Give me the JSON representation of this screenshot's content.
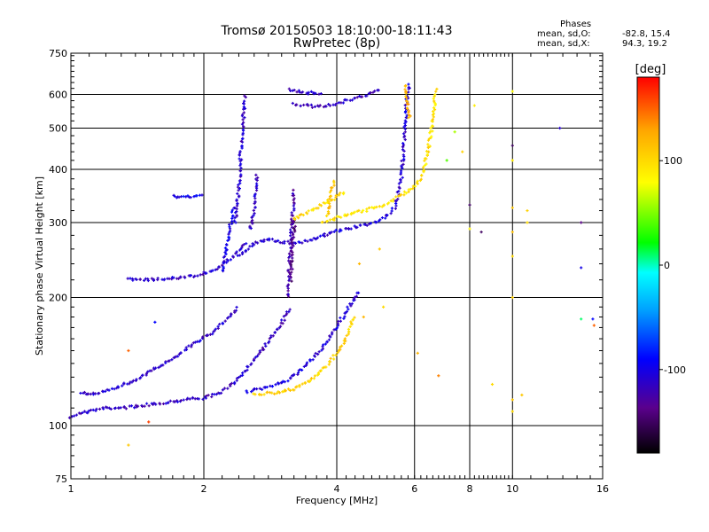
{
  "chart_data": {
    "type": "scatter",
    "title": "Tromsø 20150503 18:10:00-18:11:43",
    "subtitle": "RwPretec (8p)",
    "xlabel": "Frequency [MHz]",
    "ylabel": "Stationary phase Virtual Height [km]",
    "x_scale": "log",
    "y_scale": "log",
    "xlim": [
      1,
      16
    ],
    "ylim": [
      75,
      750
    ],
    "x_ticks": [
      1,
      2,
      4,
      6,
      8,
      10,
      16
    ],
    "x_tick_labels": [
      "1",
      "2",
      "4",
      "6",
      "8",
      "10",
      "16"
    ],
    "y_ticks": [
      75,
      100,
      200,
      300,
      400,
      500,
      600,
      750
    ],
    "y_tick_labels": [
      "75",
      "100",
      "200",
      "300",
      "400",
      "500",
      "600",
      "750"
    ],
    "grid": true,
    "colorbar": {
      "label": "[deg]",
      "range": [
        -180,
        180
      ],
      "ticks": [
        100,
        0,
        -100
      ],
      "tick_labels": [
        "100",
        "0",
        "-100"
      ],
      "colors": [
        "#000000",
        "#5a008c",
        "#0000ff",
        "#00a0ff",
        "#00ffff",
        "#00ff00",
        "#ffff00",
        "#ffa500",
        "#ff0000"
      ]
    },
    "stats": {
      "heading": "Phases",
      "o_label": "mean, sd,O:",
      "o_values": "-82.8, 15.4",
      "x_label": "mean, sd,X:",
      "x_values": "94.3, 19.2"
    },
    "traces": [
      {
        "name": "",
        "phase": -115,
        "points": [
          [
            1.0,
            105
          ],
          [
            1.05,
            107
          ],
          [
            1.1,
            108
          ],
          [
            1.15,
            109
          ],
          [
            1.2,
            110
          ],
          [
            1.25,
            110
          ],
          [
            1.3,
            110
          ],
          [
            1.4,
            111
          ],
          [
            1.5,
            112
          ],
          [
            1.6,
            113
          ],
          [
            1.7,
            114
          ],
          [
            1.8,
            115
          ],
          [
            1.9,
            116
          ],
          [
            2.0,
            116
          ],
          [
            2.1,
            118
          ],
          [
            2.2,
            120
          ],
          [
            2.3,
            124
          ],
          [
            2.4,
            130
          ],
          [
            2.5,
            136
          ],
          [
            2.6,
            143
          ],
          [
            2.7,
            150
          ],
          [
            2.8,
            158
          ],
          [
            2.9,
            166
          ],
          [
            3.0,
            175
          ],
          [
            3.1,
            184
          ],
          [
            3.15,
            190
          ]
        ]
      },
      {
        "name": "",
        "phase": -110,
        "points": [
          [
            1.05,
            120
          ],
          [
            1.1,
            118
          ],
          [
            1.2,
            121
          ],
          [
            1.3,
            124
          ],
          [
            1.4,
            128
          ],
          [
            1.5,
            133
          ],
          [
            1.6,
            139
          ],
          [
            1.7,
            144
          ],
          [
            1.8,
            150
          ],
          [
            1.9,
            156
          ],
          [
            2.0,
            161
          ],
          [
            2.1,
            166
          ],
          [
            2.2,
            174
          ],
          [
            2.3,
            182
          ],
          [
            2.4,
            190
          ]
        ]
      },
      {
        "name": "",
        "phase": -105,
        "points": [
          [
            2.5,
            120
          ],
          [
            2.7,
            122
          ],
          [
            2.9,
            125
          ],
          [
            3.1,
            128
          ],
          [
            3.3,
            134
          ],
          [
            3.5,
            142
          ],
          [
            3.7,
            152
          ],
          [
            3.9,
            164
          ],
          [
            4.1,
            178
          ],
          [
            4.3,
            192
          ],
          [
            4.5,
            208
          ]
        ]
      },
      {
        "name": "",
        "phase": -112,
        "points": [
          [
            1.35,
            222
          ],
          [
            1.4,
            220
          ],
          [
            1.5,
            220
          ],
          [
            1.6,
            221
          ],
          [
            1.7,
            222
          ],
          [
            1.8,
            223
          ],
          [
            1.9,
            225
          ],
          [
            2.0,
            228
          ],
          [
            2.1,
            232
          ],
          [
            2.2,
            238
          ],
          [
            2.3,
            247
          ],
          [
            2.4,
            258
          ],
          [
            2.5,
            270
          ]
        ]
      },
      {
        "name": "",
        "phase": -108,
        "points": [
          [
            2.4,
            250
          ],
          [
            2.5,
            258
          ],
          [
            2.6,
            268
          ],
          [
            2.8,
            275
          ],
          [
            3.0,
            270
          ],
          [
            3.2,
            268
          ],
          [
            3.4,
            271
          ],
          [
            3.6,
            276
          ],
          [
            3.8,
            282
          ],
          [
            4.0,
            286
          ],
          [
            4.2,
            290
          ],
          [
            4.5,
            294
          ],
          [
            4.8,
            298
          ],
          [
            5.0,
            304
          ],
          [
            5.2,
            312
          ],
          [
            5.4,
            325
          ],
          [
            5.5,
            345
          ],
          [
            5.6,
            380
          ],
          [
            5.65,
            430
          ],
          [
            5.7,
            500
          ],
          [
            5.75,
            560
          ],
          [
            5.8,
            610
          ],
          [
            5.85,
            640
          ]
        ]
      },
      {
        "name": "",
        "phase": -112,
        "points": [
          [
            2.35,
            300
          ],
          [
            2.4,
            360
          ],
          [
            2.42,
            420
          ],
          [
            2.44,
            480
          ],
          [
            2.46,
            540
          ],
          [
            2.48,
            600
          ]
        ]
      },
      {
        "name": "",
        "phase": -100,
        "points": [
          [
            2.2,
            230
          ],
          [
            2.25,
            260
          ],
          [
            2.3,
            300
          ],
          [
            2.35,
            330
          ]
        ]
      },
      {
        "name": "",
        "phase": -112,
        "points": [
          [
            2.55,
            290
          ],
          [
            2.6,
            320
          ],
          [
            2.62,
            360
          ],
          [
            2.64,
            390
          ]
        ]
      },
      {
        "name": "",
        "phase": -122,
        "points": [
          [
            3.1,
            200
          ],
          [
            3.12,
            230
          ],
          [
            3.14,
            260
          ],
          [
            3.16,
            290
          ],
          [
            3.18,
            320
          ],
          [
            3.2,
            360
          ]
        ]
      },
      {
        "name": "",
        "phase": -140,
        "points": [
          [
            3.15,
            220
          ],
          [
            3.17,
            250
          ],
          [
            3.19,
            280
          ],
          [
            3.21,
            310
          ]
        ]
      },
      {
        "name": "",
        "phase": -118,
        "points": [
          [
            3.2,
            570
          ],
          [
            3.4,
            565
          ],
          [
            3.6,
            562
          ],
          [
            3.8,
            565
          ],
          [
            4.0,
            572
          ],
          [
            4.2,
            580
          ],
          [
            4.5,
            592
          ],
          [
            4.8,
            605
          ],
          [
            5.0,
            620
          ]
        ]
      },
      {
        "name": "",
        "phase": -115,
        "points": [
          [
            3.1,
            615
          ],
          [
            3.3,
            610
          ],
          [
            3.5,
            605
          ],
          [
            3.7,
            600
          ]
        ]
      },
      {
        "name": "",
        "phase": -95,
        "points": [
          [
            1.7,
            345
          ],
          [
            1.8,
            345
          ],
          [
            1.9,
            346
          ],
          [
            2.0,
            348
          ]
        ]
      },
      {
        "name": "",
        "phase": 95,
        "points": [
          [
            3.7,
            300
          ],
          [
            3.9,
            305
          ],
          [
            4.1,
            310
          ],
          [
            4.3,
            314
          ],
          [
            4.5,
            318
          ],
          [
            4.7,
            322
          ],
          [
            4.9,
            326
          ],
          [
            5.1,
            330
          ],
          [
            5.3,
            336
          ],
          [
            5.5,
            345
          ],
          [
            5.7,
            352
          ],
          [
            5.9,
            360
          ],
          [
            6.1,
            372
          ],
          [
            6.2,
            385
          ],
          [
            6.3,
            400
          ],
          [
            6.4,
            430
          ],
          [
            6.5,
            470
          ],
          [
            6.6,
            520
          ],
          [
            6.65,
            570
          ],
          [
            6.7,
            620
          ]
        ]
      },
      {
        "name": "",
        "phase": 100,
        "points": [
          [
            3.2,
            305
          ],
          [
            3.4,
            315
          ],
          [
            3.6,
            325
          ],
          [
            3.8,
            335
          ],
          [
            4.0,
            345
          ],
          [
            4.2,
            355
          ]
        ]
      },
      {
        "name": "",
        "phase": 110,
        "points": [
          [
            3.8,
            310
          ],
          [
            3.85,
            330
          ],
          [
            3.9,
            360
          ],
          [
            3.95,
            380
          ]
        ]
      },
      {
        "name": "",
        "phase": 105,
        "points": [
          [
            2.6,
            118
          ],
          [
            2.8,
            119
          ],
          [
            3.0,
            120
          ],
          [
            3.2,
            122
          ],
          [
            3.4,
            126
          ],
          [
            3.6,
            131
          ],
          [
            3.8,
            138
          ],
          [
            4.0,
            148
          ],
          [
            4.2,
            160
          ],
          [
            4.3,
            172
          ],
          [
            4.4,
            182
          ]
        ]
      },
      {
        "name": "",
        "phase": 120,
        "points": [
          [
            5.7,
            630
          ],
          [
            5.75,
            600
          ],
          [
            5.8,
            560
          ],
          [
            5.85,
            520
          ]
        ]
      }
    ],
    "scatter_points": [
      {
        "x": 10.0,
        "y": 610,
        "phase": 80
      },
      {
        "x": 10.0,
        "y": 455,
        "phase": -150
      },
      {
        "x": 10.0,
        "y": 420,
        "phase": 90
      },
      {
        "x": 10.0,
        "y": 325,
        "phase": 110
      },
      {
        "x": 10.0,
        "y": 285,
        "phase": 115
      },
      {
        "x": 10.0,
        "y": 250,
        "phase": 100
      },
      {
        "x": 10.0,
        "y": 200,
        "phase": 105
      },
      {
        "x": 10.0,
        "y": 115,
        "phase": 110
      },
      {
        "x": 10.0,
        "y": 108,
        "phase": 100
      },
      {
        "x": 8.0,
        "y": 330,
        "phase": -150
      },
      {
        "x": 8.0,
        "y": 290,
        "phase": 85
      },
      {
        "x": 8.5,
        "y": 285,
        "phase": -150
      },
      {
        "x": 10.8,
        "y": 320,
        "phase": 105
      },
      {
        "x": 10.8,
        "y": 300,
        "phase": 100
      },
      {
        "x": 10.5,
        "y": 118,
        "phase": 110
      },
      {
        "x": 12.8,
        "y": 500,
        "phase": -110
      },
      {
        "x": 14.3,
        "y": 300,
        "phase": -140
      },
      {
        "x": 14.3,
        "y": 235,
        "phase": -100
      },
      {
        "x": 14.3,
        "y": 178,
        "phase": 10
      },
      {
        "x": 15.2,
        "y": 178,
        "phase": -90
      },
      {
        "x": 15.3,
        "y": 172,
        "phase": 150
      },
      {
        "x": 7.4,
        "y": 490,
        "phase": 60
      },
      {
        "x": 7.7,
        "y": 440,
        "phase": 105
      },
      {
        "x": 7.1,
        "y": 420,
        "phase": 40
      },
      {
        "x": 9.0,
        "y": 125,
        "phase": 100
      },
      {
        "x": 8.2,
        "y": 565,
        "phase": 90
      },
      {
        "x": 6.8,
        "y": 131,
        "phase": 140
      },
      {
        "x": 6.1,
        "y": 148,
        "phase": 120
      },
      {
        "x": 1.35,
        "y": 150,
        "phase": 150
      },
      {
        "x": 1.5,
        "y": 102,
        "phase": 160
      },
      {
        "x": 1.55,
        "y": 175,
        "phase": -90
      },
      {
        "x": 1.35,
        "y": 90,
        "phase": 110
      },
      {
        "x": 5.1,
        "y": 190,
        "phase": 100
      },
      {
        "x": 4.6,
        "y": 180,
        "phase": 120
      },
      {
        "x": 5.0,
        "y": 260,
        "phase": 110
      },
      {
        "x": 4.5,
        "y": 240,
        "phase": 120
      }
    ]
  }
}
